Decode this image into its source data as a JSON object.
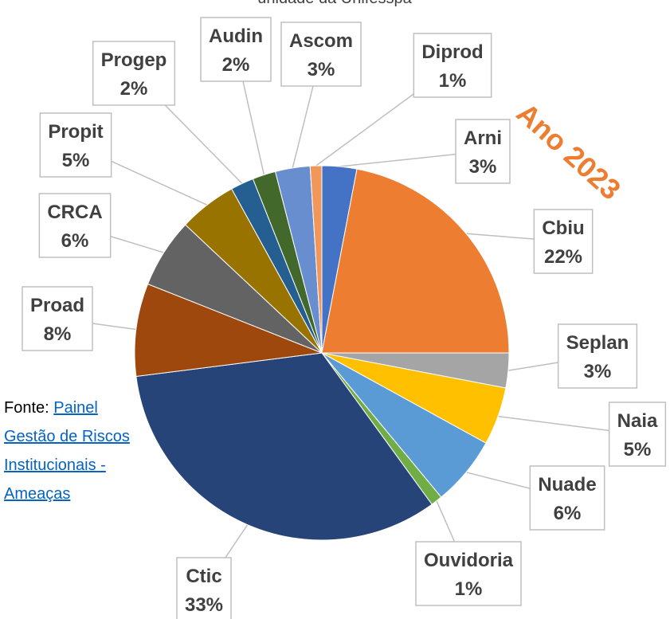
{
  "chart_data": {
    "type": "pie",
    "title": "unidade da Unifesspa",
    "annotation": "Ano 2023",
    "source_prefix": "Fonte:",
    "source_link": "Painel Gestão de Riscos Institucionais - Ameaças",
    "categories": [
      "Arni",
      "Cbiu",
      "Seplan",
      "Naia",
      "Nuade",
      "Ouvidoria",
      "Ctic",
      "Proad",
      "CRCA",
      "Propit",
      "Progep",
      "Audin",
      "Ascom",
      "Diprod"
    ],
    "values": [
      3,
      22,
      3,
      5,
      6,
      1,
      33,
      8,
      6,
      5,
      2,
      2,
      3,
      1
    ],
    "value_labels": [
      "3%",
      "22%",
      "3%",
      "5%",
      "6%",
      "1%",
      "33%",
      "8%",
      "6%",
      "5%",
      "2%",
      "2%",
      "3%",
      "1%"
    ],
    "colors": [
      "#4472c4",
      "#ed7d31",
      "#a5a5a5",
      "#ffc000",
      "#5b9bd5",
      "#70ad47",
      "#264478",
      "#9e480e",
      "#636363",
      "#997300",
      "#255e91",
      "#43682b",
      "#698ed0",
      "#f1975a"
    ]
  }
}
